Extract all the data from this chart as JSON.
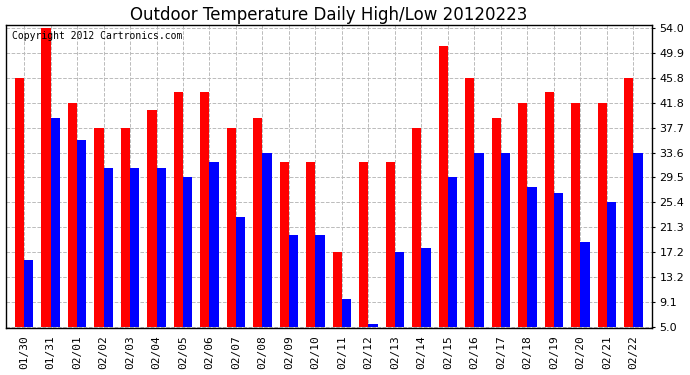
{
  "title": "Outdoor Temperature Daily High/Low 20120223",
  "copyright": "Copyright 2012 Cartronics.com",
  "dates": [
    "01/30",
    "01/31",
    "02/01",
    "02/02",
    "02/03",
    "02/04",
    "02/05",
    "02/06",
    "02/07",
    "02/08",
    "02/09",
    "02/10",
    "02/11",
    "02/12",
    "02/13",
    "02/14",
    "02/15",
    "02/16",
    "02/17",
    "02/18",
    "02/19",
    "02/20",
    "02/21",
    "02/22"
  ],
  "highs": [
    45.8,
    54.0,
    41.8,
    37.7,
    37.7,
    40.5,
    43.6,
    43.6,
    37.7,
    39.2,
    32.0,
    32.0,
    17.2,
    32.0,
    32.0,
    37.7,
    51.0,
    45.8,
    39.2,
    41.8,
    43.6,
    41.8,
    41.8,
    45.8
  ],
  "lows": [
    16.0,
    39.2,
    35.6,
    31.0,
    31.0,
    31.0,
    29.5,
    32.0,
    23.0,
    33.6,
    20.0,
    20.0,
    9.5,
    5.5,
    17.2,
    18.0,
    29.5,
    33.6,
    33.6,
    28.0,
    27.0,
    19.0,
    25.4,
    33.6
  ],
  "yticks": [
    5.0,
    9.1,
    13.2,
    17.2,
    21.3,
    25.4,
    29.5,
    33.6,
    37.7,
    41.8,
    45.8,
    49.9,
    54.0
  ],
  "ymin": 5.0,
  "ymax": 54.0,
  "bar_width": 0.35,
  "high_color": "#ff0000",
  "low_color": "#0000ff",
  "background_color": "#ffffff",
  "grid_color": "#bbbbbb",
  "title_fontsize": 12,
  "tick_fontsize": 8,
  "copyright_fontsize": 7
}
